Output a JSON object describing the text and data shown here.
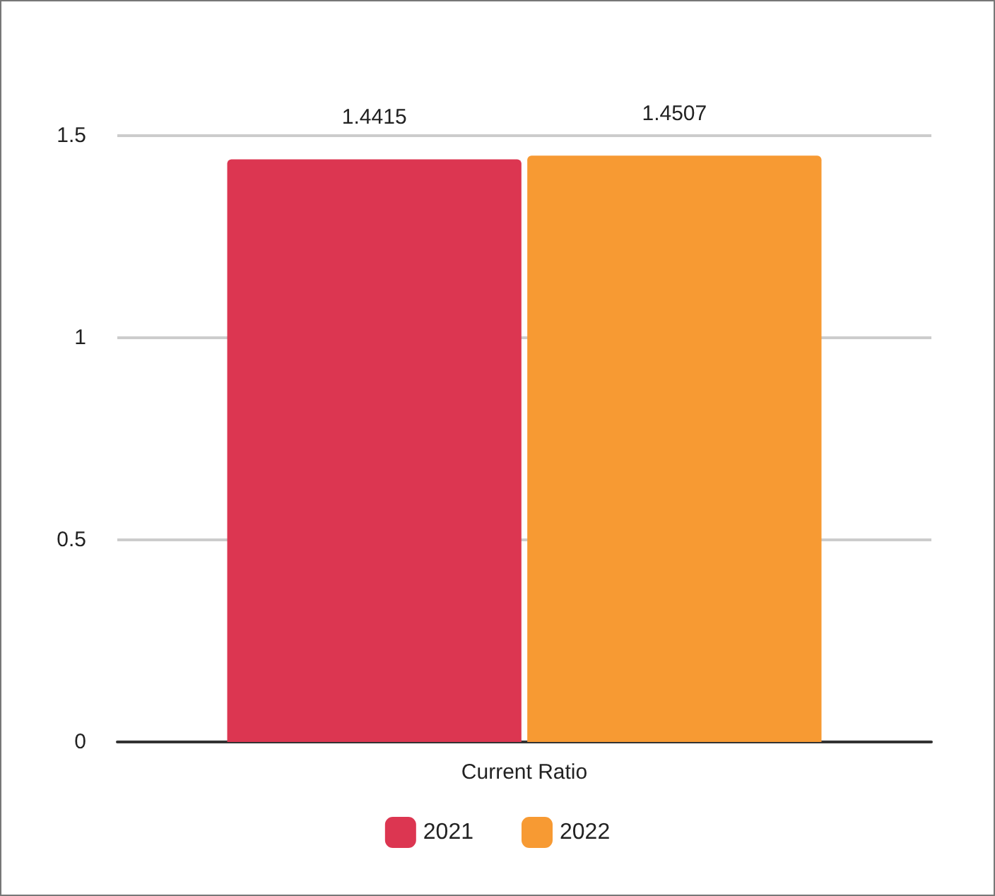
{
  "chart_data": {
    "type": "bar",
    "categories": [
      "Current Ratio"
    ],
    "series": [
      {
        "name": "2021",
        "color": "#dc3651",
        "values": [
          1.4415
        ]
      },
      {
        "name": "2022",
        "color": "#f79a33",
        "values": [
          1.4507
        ]
      }
    ],
    "ylim": [
      0,
      1.5
    ],
    "yticks": [
      0,
      0.5,
      1,
      1.5
    ],
    "grid": "y",
    "legend": "bottom",
    "data_labels": true
  }
}
